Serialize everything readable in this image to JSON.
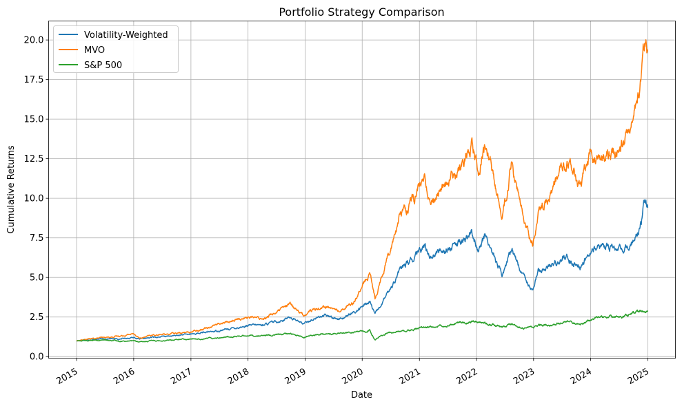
{
  "chart_data": {
    "type": "line",
    "title": "Portfolio Strategy Comparison",
    "xlabel": "Date",
    "ylabel": "Cumulative Returns",
    "x_ticks": [
      "2015",
      "2016",
      "2017",
      "2018",
      "2019",
      "2020",
      "2021",
      "2022",
      "2023",
      "2024",
      "2025"
    ],
    "y_ticks": [
      "0.0",
      "2.5",
      "5.0",
      "7.5",
      "10.0",
      "12.5",
      "15.0",
      "17.5",
      "20.0"
    ],
    "xlim": [
      "2014-07-06",
      "2025-06-26"
    ],
    "ylim": [
      -0.1,
      21.2
    ],
    "grid": true,
    "legend_position": "upper-left",
    "series": [
      {
        "name": "Volatility-Weighted",
        "color": "#1f77b4",
        "points": [
          [
            "2015-01-02",
            1.0
          ],
          [
            "2015-04-01",
            1.08
          ],
          [
            "2015-07-01",
            1.13
          ],
          [
            "2015-10-01",
            1.12
          ],
          [
            "2016-01-04",
            1.22
          ],
          [
            "2016-02-11",
            1.08
          ],
          [
            "2016-05-01",
            1.22
          ],
          [
            "2016-09-01",
            1.3
          ],
          [
            "2017-01-03",
            1.42
          ],
          [
            "2017-06-01",
            1.6
          ],
          [
            "2018-01-02",
            1.95
          ],
          [
            "2018-04-01",
            2.0
          ],
          [
            "2018-07-01",
            2.2
          ],
          [
            "2018-10-01",
            2.5
          ],
          [
            "2018-12-24",
            2.05
          ],
          [
            "2019-02-01",
            2.3
          ],
          [
            "2019-05-01",
            2.6
          ],
          [
            "2019-08-01",
            2.4
          ],
          [
            "2019-11-01",
            2.7
          ],
          [
            "2020-02-19",
            3.5
          ],
          [
            "2020-03-23",
            2.6
          ],
          [
            "2020-06-01",
            3.8
          ],
          [
            "2020-09-01",
            5.5
          ],
          [
            "2020-12-01",
            6.2
          ],
          [
            "2021-02-01",
            7.0
          ],
          [
            "2021-03-10",
            6.4
          ],
          [
            "2021-06-01",
            6.8
          ],
          [
            "2021-09-01",
            7.0
          ],
          [
            "2021-12-01",
            7.8
          ],
          [
            "2022-01-15",
            6.8
          ],
          [
            "2022-03-01",
            7.6
          ],
          [
            "2022-06-15",
            5.1
          ],
          [
            "2022-08-15",
            6.8
          ],
          [
            "2022-10-15",
            5.3
          ],
          [
            "2022-12-28",
            4.3
          ],
          [
            "2023-02-01",
            5.4
          ],
          [
            "2023-05-01",
            5.8
          ],
          [
            "2023-08-01",
            6.3
          ],
          [
            "2023-10-27",
            5.6
          ],
          [
            "2023-12-29",
            6.6
          ],
          [
            "2024-04-01",
            7.0
          ],
          [
            "2024-08-05",
            6.7
          ],
          [
            "2024-10-01",
            7.2
          ],
          [
            "2024-11-20",
            8.5
          ],
          [
            "2024-12-11",
            9.8
          ],
          [
            "2024-12-31",
            9.4
          ]
        ]
      },
      {
        "name": "MVO",
        "color": "#ff7f0e",
        "points": [
          [
            "2015-01-02",
            1.0
          ],
          [
            "2015-04-01",
            1.12
          ],
          [
            "2015-07-01",
            1.2
          ],
          [
            "2015-10-01",
            1.3
          ],
          [
            "2016-01-04",
            1.45
          ],
          [
            "2016-02-11",
            1.15
          ],
          [
            "2016-05-01",
            1.35
          ],
          [
            "2016-09-01",
            1.45
          ],
          [
            "2017-01-03",
            1.55
          ],
          [
            "2017-06-01",
            2.0
          ],
          [
            "2018-01-02",
            2.5
          ],
          [
            "2018-04-01",
            2.4
          ],
          [
            "2018-07-01",
            2.8
          ],
          [
            "2018-10-01",
            3.3
          ],
          [
            "2018-12-24",
            2.6
          ],
          [
            "2019-02-01",
            2.9
          ],
          [
            "2019-05-01",
            3.2
          ],
          [
            "2019-08-01",
            2.9
          ],
          [
            "2019-11-01",
            3.4
          ],
          [
            "2020-02-19",
            5.2
          ],
          [
            "2020-03-23",
            3.7
          ],
          [
            "2020-06-01",
            6.0
          ],
          [
            "2020-09-01",
            9.0
          ],
          [
            "2020-12-01",
            10.0
          ],
          [
            "2021-02-01",
            11.3
          ],
          [
            "2021-03-10",
            9.5
          ],
          [
            "2021-06-01",
            10.8
          ],
          [
            "2021-09-01",
            11.5
          ],
          [
            "2021-12-01",
            13.7
          ],
          [
            "2022-01-15",
            11.8
          ],
          [
            "2022-03-01",
            13.5
          ],
          [
            "2022-06-15",
            8.8
          ],
          [
            "2022-08-15",
            12.2
          ],
          [
            "2022-10-15",
            9.2
          ],
          [
            "2022-12-28",
            7.0
          ],
          [
            "2023-02-01",
            9.0
          ],
          [
            "2023-05-01",
            10.5
          ],
          [
            "2023-08-01",
            12.3
          ],
          [
            "2023-10-27",
            10.7
          ],
          [
            "2023-12-29",
            12.8
          ],
          [
            "2024-04-01",
            12.5
          ],
          [
            "2024-08-05",
            13.5
          ],
          [
            "2024-10-01",
            15.0
          ],
          [
            "2024-11-20",
            17.5
          ],
          [
            "2024-12-11",
            20.2
          ],
          [
            "2024-12-31",
            19.4
          ]
        ]
      },
      {
        "name": "S&P 500",
        "color": "#2ca02c",
        "points": [
          [
            "2015-01-02",
            1.0
          ],
          [
            "2015-04-01",
            1.02
          ],
          [
            "2015-07-01",
            1.03
          ],
          [
            "2015-10-01",
            0.98
          ],
          [
            "2016-01-04",
            1.0
          ],
          [
            "2016-02-11",
            0.9
          ],
          [
            "2016-05-01",
            1.0
          ],
          [
            "2016-09-01",
            1.05
          ],
          [
            "2017-01-03",
            1.1
          ],
          [
            "2017-06-01",
            1.18
          ],
          [
            "2018-01-02",
            1.35
          ],
          [
            "2018-04-01",
            1.3
          ],
          [
            "2018-07-01",
            1.38
          ],
          [
            "2018-10-01",
            1.45
          ],
          [
            "2018-12-24",
            1.2
          ],
          [
            "2019-02-01",
            1.32
          ],
          [
            "2019-05-01",
            1.42
          ],
          [
            "2019-08-01",
            1.45
          ],
          [
            "2019-11-01",
            1.52
          ],
          [
            "2020-02-19",
            1.65
          ],
          [
            "2020-03-23",
            1.1
          ],
          [
            "2020-06-01",
            1.45
          ],
          [
            "2020-09-01",
            1.6
          ],
          [
            "2020-12-01",
            1.75
          ],
          [
            "2021-02-01",
            1.82
          ],
          [
            "2021-03-10",
            1.85
          ],
          [
            "2021-06-01",
            2.0
          ],
          [
            "2021-09-01",
            2.1
          ],
          [
            "2021-12-01",
            2.25
          ],
          [
            "2022-01-15",
            2.2
          ],
          [
            "2022-03-01",
            2.15
          ],
          [
            "2022-06-15",
            1.85
          ],
          [
            "2022-08-15",
            2.05
          ],
          [
            "2022-10-15",
            1.8
          ],
          [
            "2022-12-28",
            1.85
          ],
          [
            "2023-02-01",
            1.95
          ],
          [
            "2023-05-01",
            2.0
          ],
          [
            "2023-08-01",
            2.2
          ],
          [
            "2023-10-27",
            2.05
          ],
          [
            "2023-12-29",
            2.3
          ],
          [
            "2024-04-01",
            2.55
          ],
          [
            "2024-08-05",
            2.5
          ],
          [
            "2024-10-01",
            2.7
          ],
          [
            "2024-11-20",
            2.85
          ],
          [
            "2024-12-11",
            2.95
          ],
          [
            "2024-12-31",
            2.9
          ]
        ]
      }
    ]
  }
}
